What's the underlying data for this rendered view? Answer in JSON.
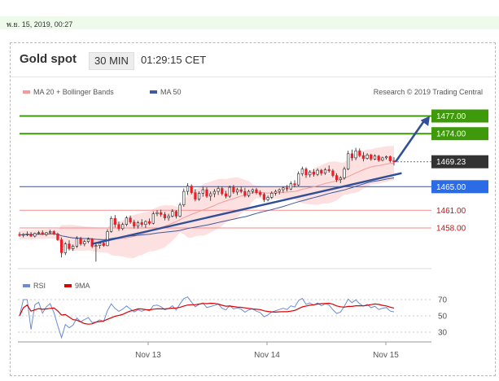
{
  "date_label": "พ.ย. 15, 2019, 00:27",
  "instrument": "Gold spot",
  "timeframe": "30 MIN",
  "time": "01:29:15 CET",
  "legend": {
    "ma20_label": "MA 20 + Bollinger Bands",
    "ma50_label": "MA 50",
    "credit": "Research © 2019 Trading Central"
  },
  "rsi_legend": {
    "rsi_label": "RSI",
    "ma_label": "9MA"
  },
  "colors": {
    "candle": "#ee1c25",
    "bollinger_fill": "#fcd8d8",
    "ma20": "#f29b9b",
    "ma50": "#3d5b9e",
    "trendline": "#2f4f98",
    "green_level": "#3e9a0a",
    "blue_level": "#2b6ce6",
    "red_level": "#f38d8d",
    "current_price_bg": "#333333",
    "rsi_line": "#6c8bd4",
    "rsi_ma": "#dd0000",
    "arrow": "#2f4f98"
  },
  "chart_data": [
    {
      "type": "candlestick",
      "title": "Gold spot",
      "x_tick_labels": [
        "Nov 13",
        "Nov 14",
        "Nov 15"
      ],
      "ylim": [
        1452.2,
        1479.0
      ],
      "levels": [
        {
          "value": 1477.0,
          "label": "1477.00",
          "style": "resistance"
        },
        {
          "value": 1474.0,
          "label": "1474.00",
          "style": "resistance"
        },
        {
          "value": 1469.23,
          "label": "1469.23",
          "style": "last-price"
        },
        {
          "value": 1465.0,
          "label": "1465.00",
          "style": "pivot"
        },
        {
          "value": 1461.0,
          "label": "1461.00",
          "style": "support"
        },
        {
          "value": 1458.0,
          "label": "1458.00",
          "style": "support"
        }
      ],
      "trendline": [
        {
          "bar": 19,
          "value": 1455.3
        },
        {
          "bar": 100,
          "value": 1467.3
        }
      ],
      "projected_path": [
        1469.23,
        1477.0
      ],
      "series": [
        {
          "name": "Price",
          "type": "candlestick",
          "ohlc": [
            [
              1456.9,
              1457.3,
              1456.5,
              1456.8
            ],
            [
              1456.8,
              1457.1,
              1456.4,
              1456.9
            ],
            [
              1456.9,
              1457.4,
              1456.6,
              1457.0
            ],
            [
              1457.0,
              1457.3,
              1456.5,
              1456.6
            ],
            [
              1456.6,
              1457.2,
              1456.4,
              1457.1
            ],
            [
              1457.1,
              1457.5,
              1456.9,
              1457.2
            ],
            [
              1457.2,
              1457.6,
              1456.8,
              1456.9
            ],
            [
              1456.9,
              1457.3,
              1456.6,
              1457.2
            ],
            [
              1457.2,
              1457.7,
              1457.0,
              1457.4
            ],
            [
              1457.4,
              1457.6,
              1456.8,
              1457.0
            ],
            [
              1457.0,
              1457.2,
              1455.8,
              1456.0
            ],
            [
              1456.0,
              1456.4,
              1453.0,
              1453.8
            ],
            [
              1453.8,
              1455.6,
              1453.4,
              1455.3
            ],
            [
              1455.3,
              1455.9,
              1454.2,
              1454.5
            ],
            [
              1454.5,
              1455.2,
              1454.1,
              1454.9
            ],
            [
              1454.9,
              1456.6,
              1454.6,
              1456.2
            ],
            [
              1456.2,
              1456.5,
              1455.0,
              1455.3
            ],
            [
              1455.3,
              1456.0,
              1454.9,
              1455.7
            ],
            [
              1455.7,
              1456.4,
              1455.4,
              1456.1
            ],
            [
              1456.1,
              1456.3,
              1454.6,
              1454.9
            ],
            [
              1454.9,
              1455.4,
              1452.3,
              1455.0
            ],
            [
              1455.0,
              1455.6,
              1454.5,
              1455.4
            ],
            [
              1455.4,
              1455.8,
              1454.8,
              1455.0
            ],
            [
              1455.0,
              1457.8,
              1454.9,
              1457.4
            ],
            [
              1457.4,
              1460.0,
              1457.2,
              1459.6
            ],
            [
              1459.6,
              1460.2,
              1458.1,
              1458.6
            ],
            [
              1458.6,
              1459.1,
              1457.5,
              1457.9
            ],
            [
              1457.9,
              1458.9,
              1457.6,
              1458.6
            ],
            [
              1458.6,
              1460.0,
              1458.3,
              1459.7
            ],
            [
              1459.7,
              1460.1,
              1458.7,
              1459.0
            ],
            [
              1459.0,
              1459.4,
              1457.9,
              1458.3
            ],
            [
              1458.3,
              1459.2,
              1457.9,
              1458.9
            ],
            [
              1458.9,
              1459.5,
              1458.2,
              1458.6
            ],
            [
              1458.6,
              1459.3,
              1458.0,
              1459.1
            ],
            [
              1459.1,
              1459.6,
              1458.5,
              1458.8
            ],
            [
              1458.8,
              1460.8,
              1458.6,
              1460.4
            ],
            [
              1460.4,
              1461.0,
              1460.0,
              1460.6
            ],
            [
              1460.6,
              1461.1,
              1459.9,
              1460.3
            ],
            [
              1460.3,
              1460.7,
              1459.3,
              1459.7
            ],
            [
              1459.7,
              1460.4,
              1459.2,
              1460.0
            ],
            [
              1460.0,
              1461.2,
              1459.8,
              1460.8
            ],
            [
              1460.8,
              1461.0,
              1459.6,
              1460.0
            ],
            [
              1460.0,
              1462.3,
              1459.8,
              1461.9
            ],
            [
              1461.9,
              1464.7,
              1461.6,
              1464.2
            ],
            [
              1464.2,
              1465.6,
              1463.6,
              1465.1
            ],
            [
              1465.1,
              1465.4,
              1463.7,
              1464.0
            ],
            [
              1464.0,
              1464.6,
              1462.5,
              1462.9
            ],
            [
              1462.9,
              1464.2,
              1462.6,
              1463.9
            ],
            [
              1463.9,
              1465.0,
              1463.3,
              1464.5
            ],
            [
              1464.5,
              1464.9,
              1463.1,
              1463.4
            ],
            [
              1463.4,
              1464.2,
              1462.6,
              1463.8
            ],
            [
              1463.8,
              1464.6,
              1463.2,
              1464.2
            ],
            [
              1464.2,
              1465.1,
              1463.6,
              1464.7
            ],
            [
              1464.7,
              1465.0,
              1463.5,
              1463.8
            ],
            [
              1463.8,
              1464.3,
              1463.0,
              1463.4
            ],
            [
              1463.4,
              1465.2,
              1463.1,
              1464.9
            ],
            [
              1464.9,
              1465.3,
              1463.8,
              1464.1
            ],
            [
              1464.1,
              1464.8,
              1463.6,
              1464.5
            ],
            [
              1464.5,
              1465.0,
              1463.9,
              1464.2
            ],
            [
              1464.2,
              1464.8,
              1463.2,
              1463.5
            ],
            [
              1463.5,
              1464.5,
              1463.2,
              1464.2
            ],
            [
              1464.2,
              1464.7,
              1463.8,
              1464.5
            ],
            [
              1464.5,
              1464.8,
              1463.7,
              1464.0
            ],
            [
              1464.0,
              1464.4,
              1463.3,
              1463.7
            ],
            [
              1463.7,
              1464.0,
              1462.4,
              1462.8
            ],
            [
              1462.8,
              1463.5,
              1462.5,
              1463.2
            ],
            [
              1463.2,
              1464.2,
              1462.9,
              1463.9
            ],
            [
              1463.9,
              1464.5,
              1463.5,
              1464.2
            ],
            [
              1464.2,
              1464.7,
              1463.7,
              1464.5
            ],
            [
              1464.5,
              1465.0,
              1464.0,
              1464.8
            ],
            [
              1464.8,
              1465.3,
              1464.2,
              1464.6
            ],
            [
              1464.6,
              1465.9,
              1464.4,
              1465.5
            ],
            [
              1465.5,
              1466.1,
              1464.9,
              1465.3
            ],
            [
              1465.3,
              1467.6,
              1465.1,
              1467.2
            ],
            [
              1467.2,
              1468.4,
              1466.8,
              1468.0
            ],
            [
              1468.0,
              1468.3,
              1466.5,
              1467.0
            ],
            [
              1467.0,
              1467.8,
              1466.6,
              1467.5
            ],
            [
              1467.5,
              1468.0,
              1466.7,
              1467.1
            ],
            [
              1467.1,
              1468.1,
              1466.8,
              1467.8
            ],
            [
              1467.8,
              1468.0,
              1466.9,
              1467.3
            ],
            [
              1467.3,
              1468.2,
              1467.0,
              1467.9
            ],
            [
              1467.9,
              1468.6,
              1467.4,
              1467.7
            ],
            [
              1467.7,
              1468.0,
              1466.6,
              1466.9
            ],
            [
              1466.9,
              1467.3,
              1465.8,
              1466.2
            ],
            [
              1466.2,
              1466.8,
              1465.6,
              1466.5
            ],
            [
              1466.5,
              1468.4,
              1466.2,
              1468.0
            ],
            [
              1468.0,
              1471.1,
              1467.8,
              1470.6
            ],
            [
              1470.6,
              1471.3,
              1469.4,
              1469.9
            ],
            [
              1469.9,
              1471.6,
              1469.5,
              1471.1
            ],
            [
              1471.1,
              1471.5,
              1470.0,
              1470.3
            ],
            [
              1470.3,
              1470.9,
              1469.3,
              1469.8
            ],
            [
              1469.8,
              1470.7,
              1469.6,
              1470.4
            ],
            [
              1470.4,
              1470.6,
              1469.4,
              1469.7
            ],
            [
              1469.7,
              1470.5,
              1469.5,
              1470.2
            ],
            [
              1470.2,
              1470.4,
              1469.2,
              1469.5
            ],
            [
              1469.5,
              1470.1,
              1469.3,
              1469.9
            ],
            [
              1469.9,
              1470.3,
              1469.6,
              1470.1
            ],
            [
              1470.1,
              1470.3,
              1469.1,
              1469.4
            ],
            [
              1469.4,
              1470.0,
              1468.6,
              1469.23
            ]
          ]
        },
        {
          "name": "MA 20 + Bollinger Bands",
          "type": "line+band"
        },
        {
          "name": "MA 50",
          "type": "line"
        }
      ]
    },
    {
      "type": "line",
      "title": "",
      "series_labels": [
        "RSI",
        "9MA"
      ],
      "ylim": [
        20,
        80
      ],
      "y_ticks": [
        70,
        50,
        30
      ],
      "x_tick_labels": [
        "Nov 13",
        "Nov 14",
        "Nov 15"
      ]
    }
  ]
}
